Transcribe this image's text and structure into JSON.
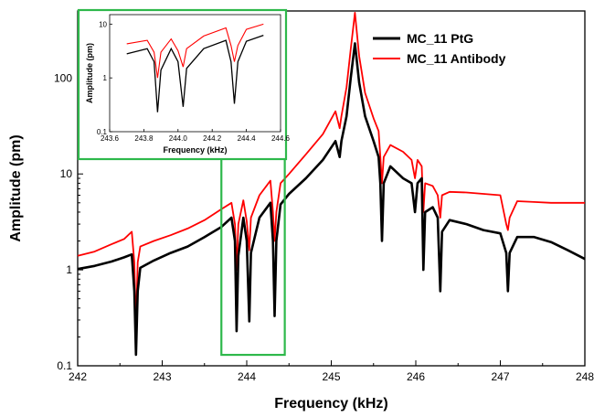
{
  "chart_data": {
    "type": "line",
    "xlabel": "Frequency (kHz)",
    "ylabel": "Amplitude (pm)",
    "xlim": [
      242,
      248
    ],
    "ylim": [
      0.1,
      500
    ],
    "yscale": "log",
    "x_ticks": [
      242,
      243,
      244,
      245,
      246,
      247,
      248
    ],
    "x_tick_labels": [
      "242",
      "243",
      "244",
      "245",
      "246",
      "247",
      "248"
    ],
    "y_ticks": [
      0.1,
      1,
      10,
      100
    ],
    "y_tick_labels": [
      "0.1",
      "1",
      "10",
      "100"
    ],
    "legend_position": "top-right",
    "series": [
      {
        "name": "MC_11 PtG",
        "color": "#000000",
        "points": [
          [
            242.0,
            1.02
          ],
          [
            242.2,
            1.1
          ],
          [
            242.4,
            1.22
          ],
          [
            242.55,
            1.35
          ],
          [
            242.64,
            1.45
          ],
          [
            242.67,
            0.6
          ],
          [
            242.69,
            0.13
          ],
          [
            242.71,
            0.6
          ],
          [
            242.74,
            1.05
          ],
          [
            242.9,
            1.25
          ],
          [
            243.1,
            1.5
          ],
          [
            243.3,
            1.75
          ],
          [
            243.5,
            2.2
          ],
          [
            243.7,
            2.8
          ],
          [
            243.82,
            3.5
          ],
          [
            243.86,
            2.0
          ],
          [
            243.88,
            0.23
          ],
          [
            243.9,
            1.4
          ],
          [
            243.96,
            3.5
          ],
          [
            244.0,
            2.0
          ],
          [
            244.03,
            0.29
          ],
          [
            244.05,
            1.5
          ],
          [
            244.15,
            3.5
          ],
          [
            244.28,
            5.0
          ],
          [
            244.31,
            2.0
          ],
          [
            244.33,
            0.33
          ],
          [
            244.35,
            2.0
          ],
          [
            244.4,
            4.8
          ],
          [
            244.5,
            6.2
          ],
          [
            244.7,
            9.0
          ],
          [
            244.9,
            14
          ],
          [
            245.05,
            22
          ],
          [
            245.1,
            15
          ],
          [
            245.12,
            22
          ],
          [
            245.18,
            40
          ],
          [
            245.23,
            100
          ],
          [
            245.28,
            230
          ],
          [
            245.33,
            90
          ],
          [
            245.4,
            40
          ],
          [
            245.5,
            22
          ],
          [
            245.56,
            15
          ],
          [
            245.58,
            8
          ],
          [
            245.6,
            2.0
          ],
          [
            245.62,
            8
          ],
          [
            245.7,
            12
          ],
          [
            245.85,
            9
          ],
          [
            245.95,
            8
          ],
          [
            245.99,
            4.0
          ],
          [
            246.02,
            8
          ],
          [
            246.07,
            9
          ],
          [
            246.09,
            1.0
          ],
          [
            246.11,
            4.0
          ],
          [
            246.2,
            4.5
          ],
          [
            246.26,
            3.5
          ],
          [
            246.29,
            0.6
          ],
          [
            246.31,
            2.5
          ],
          [
            246.4,
            3.3
          ],
          [
            246.6,
            3.0
          ],
          [
            246.8,
            2.6
          ],
          [
            247.0,
            2.4
          ],
          [
            247.07,
            1.5
          ],
          [
            247.09,
            0.6
          ],
          [
            247.11,
            1.5
          ],
          [
            247.2,
            2.2
          ],
          [
            247.4,
            2.2
          ],
          [
            247.6,
            1.95
          ],
          [
            247.8,
            1.6
          ],
          [
            248.0,
            1.3
          ]
        ]
      },
      {
        "name": "MC_11 Antibody",
        "color": "#ff0000",
        "points": [
          [
            242.0,
            1.4
          ],
          [
            242.2,
            1.55
          ],
          [
            242.4,
            1.85
          ],
          [
            242.55,
            2.1
          ],
          [
            242.64,
            2.5
          ],
          [
            242.67,
            1.2
          ],
          [
            242.69,
            0.25
          ],
          [
            242.71,
            1.2
          ],
          [
            242.74,
            1.75
          ],
          [
            242.9,
            2.0
          ],
          [
            243.1,
            2.3
          ],
          [
            243.3,
            2.7
          ],
          [
            243.5,
            3.3
          ],
          [
            243.7,
            4.3
          ],
          [
            243.82,
            5.0
          ],
          [
            243.86,
            3.0
          ],
          [
            243.88,
            1.0
          ],
          [
            243.9,
            3.0
          ],
          [
            243.96,
            5.3
          ],
          [
            244.0,
            3.2
          ],
          [
            244.03,
            1.6
          ],
          [
            244.05,
            3.5
          ],
          [
            244.15,
            6.0
          ],
          [
            244.28,
            8.5
          ],
          [
            244.31,
            4.0
          ],
          [
            244.33,
            2.0
          ],
          [
            244.35,
            4.0
          ],
          [
            244.4,
            8.0
          ],
          [
            244.5,
            10
          ],
          [
            244.7,
            16
          ],
          [
            244.9,
            26
          ],
          [
            245.05,
            45
          ],
          [
            245.1,
            30
          ],
          [
            245.12,
            40
          ],
          [
            245.18,
            80
          ],
          [
            245.23,
            200
          ],
          [
            245.28,
            480
          ],
          [
            245.33,
            170
          ],
          [
            245.4,
            70
          ],
          [
            245.5,
            38
          ],
          [
            245.56,
            28
          ],
          [
            245.58,
            15
          ],
          [
            245.6,
            8
          ],
          [
            245.62,
            15
          ],
          [
            245.7,
            20
          ],
          [
            245.85,
            17
          ],
          [
            245.95,
            14
          ],
          [
            245.99,
            9
          ],
          [
            246.02,
            14
          ],
          [
            246.07,
            12
          ],
          [
            246.09,
            4.0
          ],
          [
            246.11,
            8
          ],
          [
            246.2,
            7.5
          ],
          [
            246.26,
            6.0
          ],
          [
            246.29,
            3.5
          ],
          [
            246.31,
            6.0
          ],
          [
            246.4,
            6.5
          ],
          [
            246.6,
            6.4
          ],
          [
            246.8,
            6.2
          ],
          [
            247.0,
            6.0
          ],
          [
            247.07,
            3.0
          ],
          [
            247.09,
            2.6
          ],
          [
            247.11,
            3.5
          ],
          [
            247.2,
            5.2
          ],
          [
            247.4,
            5.1
          ],
          [
            247.6,
            5.0
          ],
          [
            247.8,
            5.0
          ],
          [
            248.0,
            5.0
          ]
        ]
      }
    ],
    "highlight_box": {
      "xlim": [
        243.7,
        244.45
      ],
      "ylim": [
        0.13,
        20
      ],
      "color": "#2eb84b"
    },
    "inset": {
      "xlabel": "Frequency (kHz)",
      "ylabel": "Amplitude (pm)",
      "xlim": [
        243.6,
        244.6
      ],
      "ylim": [
        0.1,
        15
      ],
      "yscale": "log",
      "x_ticks": [
        243.6,
        243.8,
        244.0,
        244.2,
        244.4,
        244.6
      ],
      "x_tick_labels": [
        "243.6",
        "243.8",
        "244.0",
        "244.2",
        "244.4",
        "244.6"
      ],
      "y_ticks": [
        0.1,
        1,
        10
      ],
      "y_tick_labels": [
        "0.1",
        "1",
        "10"
      ],
      "border_color": "#2eb84b"
    }
  }
}
